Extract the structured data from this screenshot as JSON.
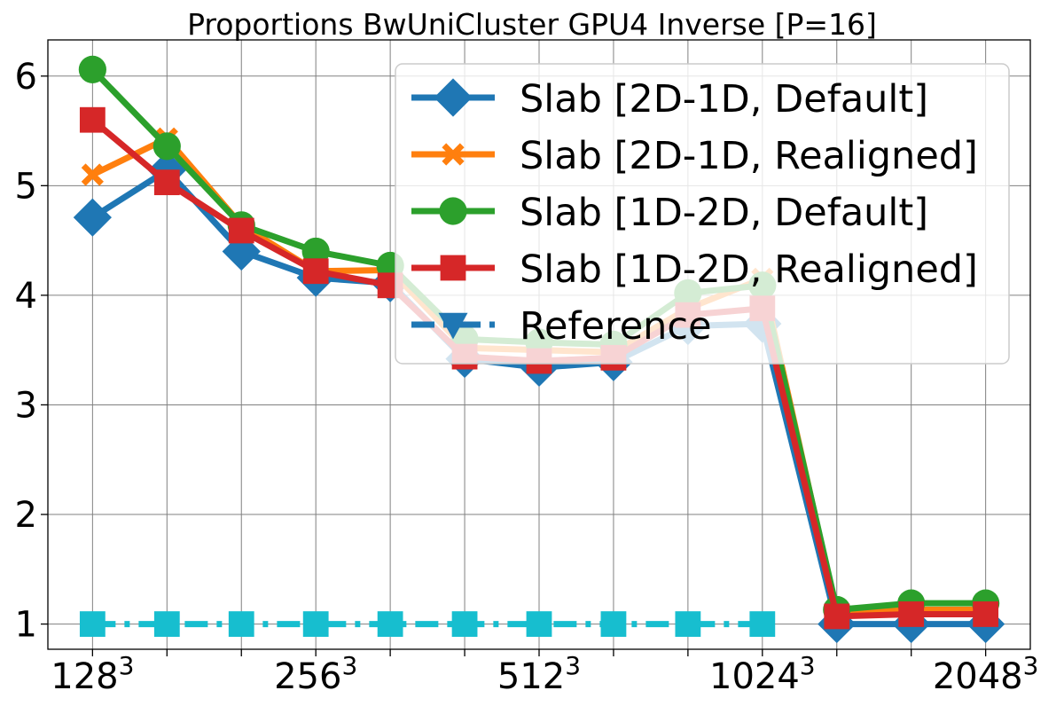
{
  "chart_data": {
    "type": "line",
    "title": "Proportions BwUniCluster GPU4 Inverse [P=16]",
    "xlabel": "",
    "ylabel": "",
    "x": [
      1,
      2,
      3,
      4,
      5,
      6,
      7,
      8,
      9,
      10,
      11,
      12,
      13
    ],
    "xlim": [
      0.4,
      13.6
    ],
    "xticks": [
      {
        "x": 1,
        "base": "128",
        "exp": "3"
      },
      {
        "x": 4,
        "base": "256",
        "exp": "3"
      },
      {
        "x": 7,
        "base": "512",
        "exp": "3"
      },
      {
        "x": 10,
        "base": "1024",
        "exp": "3"
      },
      {
        "x": 13,
        "base": "2048",
        "exp": "3"
      }
    ],
    "ylim": [
      0.77,
      6.33
    ],
    "yticks": [
      "1",
      "2",
      "3",
      "4",
      "5",
      "6"
    ],
    "grid": true,
    "legend_position": "top-right",
    "series": [
      {
        "name": "Slab [2D-1D, Default]",
        "color": "#1f77b4",
        "marker": "diamond",
        "dash": "solid",
        "values": [
          4.71,
          5.14,
          4.4,
          4.16,
          4.11,
          3.42,
          3.34,
          3.39,
          3.72,
          3.74,
          1.0,
          1.0,
          1.0
        ]
      },
      {
        "name": "Slab [2D-1D, Realigned]",
        "color": "#ff7f0e",
        "marker": "x",
        "dash": "solid",
        "values": [
          5.1,
          5.43,
          4.64,
          4.22,
          4.23,
          3.52,
          3.5,
          3.48,
          3.88,
          4.15,
          1.1,
          1.13,
          1.13
        ]
      },
      {
        "name": "Slab [1D-2D, Default]",
        "color": "#2ca02c",
        "marker": "circle",
        "dash": "solid",
        "values": [
          6.06,
          5.36,
          4.64,
          4.4,
          4.27,
          3.6,
          3.57,
          3.55,
          4.02,
          4.09,
          1.13,
          1.19,
          1.19
        ]
      },
      {
        "name": "Slab [1D-2D, Realigned]",
        "color": "#d62728",
        "marker": "square",
        "dash": "solid",
        "values": [
          5.6,
          5.03,
          4.59,
          4.22,
          4.09,
          3.44,
          3.4,
          3.43,
          3.82,
          3.88,
          1.07,
          1.09,
          1.09
        ]
      },
      {
        "name": "Reference",
        "color": "#1f77b4",
        "marker": "triangle-down",
        "dash": "dashdot",
        "values": [
          1.0,
          1.0,
          1.0,
          1.0,
          1.0,
          1.0,
          1.0,
          1.0,
          1.0,
          1.0,
          null,
          null,
          null
        ],
        "line_color": "#17becf",
        "marker_shape": "square"
      }
    ]
  }
}
